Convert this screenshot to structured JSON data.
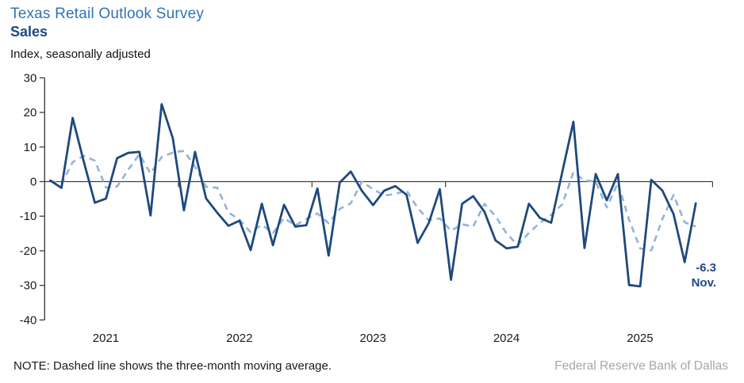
{
  "header": {
    "title": "Texas Retail Outlook Survey",
    "subtitle": "Sales",
    "units": "Index, seasonally adjusted"
  },
  "annotation": {
    "value": "-6.3",
    "month": "Nov."
  },
  "footer": {
    "note": "NOTE: Dashed line shows the three-month moving average.",
    "source": "Federal Reserve Bank of Dallas"
  },
  "colors": {
    "title": "#2E74B5",
    "subtitle": "#1F497D",
    "sales_line": "#1F497D",
    "moving_average_line": "#95B3D7",
    "axis": "#404040",
    "source_text": "#A6A6A6"
  },
  "chart_data": {
    "type": "line",
    "title": "Texas Retail Outlook Survey — Sales",
    "ylabel": "Index, seasonally adjusted",
    "ylim": [
      -40,
      30
    ],
    "yticks": [
      30,
      20,
      10,
      0,
      -10,
      -20,
      -30,
      -40
    ],
    "grid": false,
    "legend": "none; dashed-line note shown below chart",
    "year_labels": [
      "2021",
      "2022",
      "2023",
      "2024",
      "2025"
    ],
    "last_point_label": "-6.3 Nov.",
    "categories": [
      "Jan 2021",
      "Feb 2021",
      "Mar 2021",
      "Apr 2021",
      "May 2021",
      "Jun 2021",
      "Jul 2021",
      "Aug 2021",
      "Sep 2021",
      "Oct 2021",
      "Nov 2021",
      "Dec 2021",
      "Jan 2022",
      "Feb 2022",
      "Mar 2022",
      "Apr 2022",
      "May 2022",
      "Jun 2022",
      "Jul 2022",
      "Aug 2022",
      "Sep 2022",
      "Oct 2022",
      "Nov 2022",
      "Dec 2022",
      "Jan 2023",
      "Feb 2023",
      "Mar 2023",
      "Apr 2023",
      "May 2023",
      "Jun 2023",
      "Jul 2023",
      "Aug 2023",
      "Sep 2023",
      "Oct 2023",
      "Nov 2023",
      "Dec 2023",
      "Jan 2024",
      "Feb 2024",
      "Mar 2024",
      "Apr 2024",
      "May 2024",
      "Jun 2024",
      "Jul 2024",
      "Aug 2024",
      "Sep 2024",
      "Oct 2024",
      "Nov 2024",
      "Dec 2024",
      "Jan 2025",
      "Feb 2025",
      "Mar 2025",
      "Apr 2025",
      "May 2025",
      "Jun 2025",
      "Jul 2025",
      "Aug 2025",
      "Sep 2025",
      "Oct 2025",
      "Nov 2025"
    ],
    "series": [
      {
        "name": "Sales index",
        "values": [
          0.3,
          -1.8,
          18.4,
          5.8,
          -6.1,
          -4.9,
          6.8,
          8.3,
          8.6,
          -9.8,
          22.4,
          12.6,
          -8.3,
          8.6,
          -4.9,
          -9.0,
          -12.8,
          -11.3,
          -19.8,
          -6.4,
          -18.4,
          -6.7,
          -13.0,
          -12.6,
          -2.0,
          -21.4,
          -0.3,
          2.9,
          -2.7,
          -6.8,
          -2.6,
          -1.3,
          -3.8,
          -17.7,
          -12.0,
          -2.2,
          -28.4,
          -6.4,
          -4.2,
          -8.7,
          -17.0,
          -19.3,
          -18.8,
          -6.4,
          -10.5,
          -11.9,
          2.8,
          17.3,
          -19.2,
          2.2,
          -5.4,
          2.2,
          -29.9,
          -30.3,
          0.5,
          -2.6,
          -9.4,
          -23.3,
          -6.3
        ]
      },
      {
        "name": "Three-month moving average",
        "derived_from": "Sales index",
        "rule": "trailing 3-month mean (partial window at series start)"
      }
    ]
  }
}
